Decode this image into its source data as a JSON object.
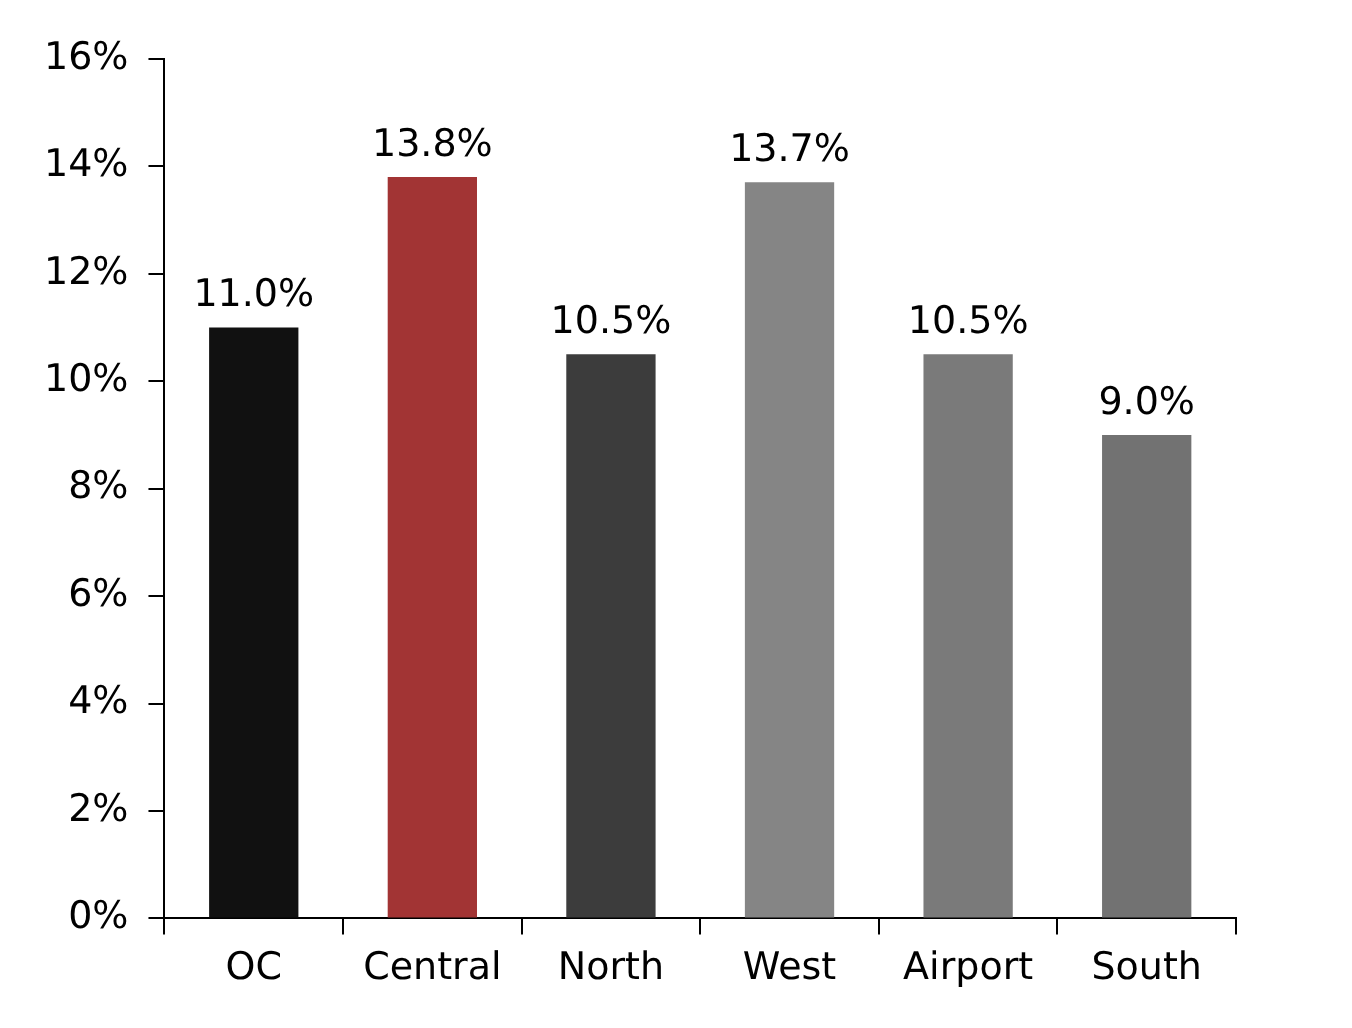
{
  "chart_data": {
    "type": "bar",
    "categories": [
      "OC",
      "Central",
      "North",
      "West",
      "Airport",
      "South"
    ],
    "values": [
      11.0,
      13.8,
      10.5,
      13.7,
      10.5,
      9.0
    ],
    "colors": [
      "#111111",
      "#a23434",
      "#3c3c3c",
      "#858585",
      "#7a7a7a",
      "#727272"
    ],
    "value_labels": [
      "11.0%",
      "13.8%",
      "10.5%",
      "13.7%",
      "10.5%",
      "9.0%"
    ],
    "ylim": [
      0,
      16
    ],
    "yticks": [
      {
        "value": 0,
        "label": "0%"
      },
      {
        "value": 2,
        "label": "2%"
      },
      {
        "value": 4,
        "label": "4%"
      },
      {
        "value": 6,
        "label": "6%"
      },
      {
        "value": 8,
        "label": "8%"
      },
      {
        "value": 10,
        "label": "10%"
      },
      {
        "value": 12,
        "label": "12%"
      },
      {
        "value": 14,
        "label": "14%"
      },
      {
        "value": 16,
        "label": "16%"
      }
    ],
    "grid": false,
    "legend": false
  }
}
